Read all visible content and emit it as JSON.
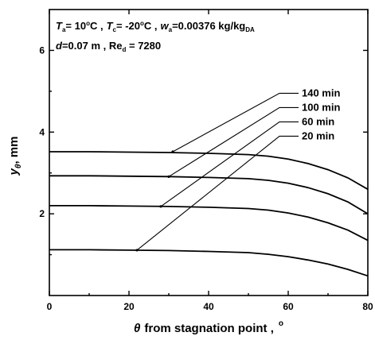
{
  "chart_data": {
    "type": "line",
    "xlim": [
      0,
      80
    ],
    "ylim": [
      0,
      7
    ],
    "x_ticks": [
      0,
      20,
      40,
      60,
      80
    ],
    "y_ticks": [
      2,
      4,
      6
    ],
    "xlabel": {
      "symbol": "θ",
      "text": "from stagnation point ,",
      "unit": "o"
    },
    "ylabel": {
      "symbol": "y",
      "subscript": "θ",
      "unit": ",  mm"
    },
    "annotation": {
      "line1": {
        "Ta": "T",
        "Ta_sub": "a",
        "Ta_val": "= 10",
        "Ta_deg": "o",
        "Ta_C": "C ,",
        "Tc": "T",
        "Tc_sub": "c",
        "Tc_val": "= -20",
        "Tc_deg": "o",
        "Tc_C": "C ,",
        "wa": "w",
        "wa_sub": "a",
        "wa_val": "=0.00376 kg/kg",
        "wa_unit_sub": "DA"
      },
      "line2": {
        "d": "d",
        "d_val": "=0.07 m , Re",
        "Re_sub": "d",
        "Re_val": " = 7280"
      }
    },
    "series": [
      {
        "name": "140 min",
        "x": [
          0,
          10,
          20,
          30,
          40,
          50,
          55,
          60,
          65,
          70,
          75,
          80
        ],
        "values": [
          3.52,
          3.52,
          3.51,
          3.5,
          3.48,
          3.45,
          3.41,
          3.34,
          3.23,
          3.08,
          2.88,
          2.6
        ],
        "leader_from": [
          31,
          3.52
        ],
        "label_pos": [
          63,
          4.95
        ]
      },
      {
        "name": "100 min",
        "x": [
          0,
          10,
          20,
          30,
          40,
          50,
          55,
          60,
          65,
          70,
          75,
          80
        ],
        "values": [
          2.93,
          2.93,
          2.92,
          2.91,
          2.89,
          2.86,
          2.82,
          2.75,
          2.64,
          2.49,
          2.29,
          2.0
        ],
        "leader_from": [
          30,
          2.91
        ],
        "label_pos": [
          63,
          4.6
        ]
      },
      {
        "name": "60 min",
        "x": [
          0,
          10,
          20,
          30,
          40,
          50,
          55,
          60,
          65,
          70,
          75,
          80
        ],
        "values": [
          2.2,
          2.2,
          2.19,
          2.18,
          2.16,
          2.13,
          2.09,
          2.02,
          1.92,
          1.78,
          1.6,
          1.35
        ],
        "leader_from": [
          28,
          2.18
        ],
        "label_pos": [
          63,
          4.25
        ]
      },
      {
        "name": "20 min",
        "x": [
          0,
          10,
          20,
          30,
          40,
          50,
          55,
          60,
          65,
          70,
          75,
          80
        ],
        "values": [
          1.12,
          1.12,
          1.11,
          1.1,
          1.08,
          1.05,
          1.01,
          0.95,
          0.87,
          0.77,
          0.64,
          0.48
        ],
        "leader_from": [
          22,
          1.11
        ],
        "label_pos": [
          63,
          3.9
        ]
      }
    ]
  }
}
